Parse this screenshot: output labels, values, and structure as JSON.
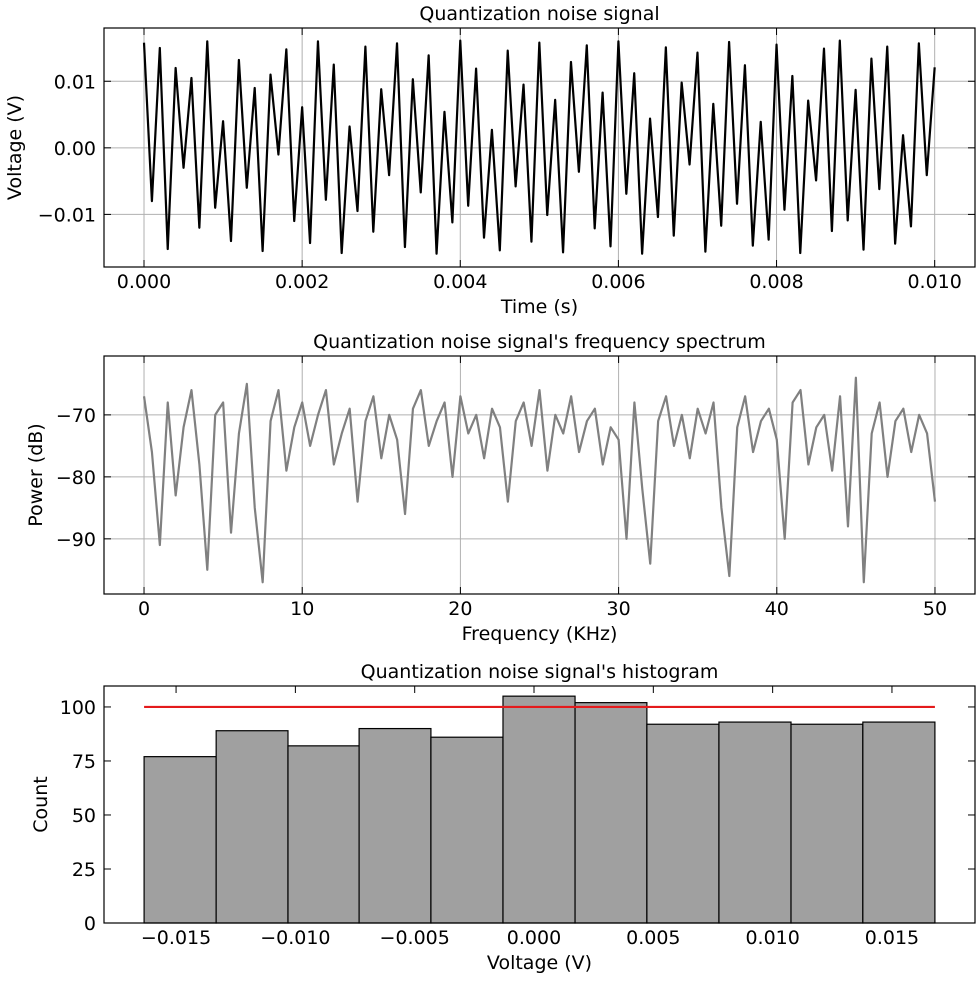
{
  "chart_data": [
    {
      "type": "line",
      "title": "Quantization noise signal",
      "xlabel": "Time (s)",
      "ylabel": "Voltage (V)",
      "color": "#000000",
      "grid": true,
      "xlim": [
        -0.000506,
        0.01051
      ],
      "ylim": [
        -0.0179,
        0.018
      ],
      "xticks": [
        {
          "value": 0,
          "label": "0.000"
        },
        {
          "value": 0.002,
          "label": "0.002"
        },
        {
          "value": 0.004,
          "label": "0.004"
        },
        {
          "value": 0.006,
          "label": "0.006"
        },
        {
          "value": 0.008,
          "label": "0.008"
        },
        {
          "value": 0.01,
          "label": "0.010"
        }
      ],
      "yticks": [
        {
          "value": -0.01,
          "label": "−0.01"
        },
        {
          "value": 0,
          "label": "0.00"
        },
        {
          "value": 0.01,
          "label": "0.01"
        }
      ],
      "x": [
        0,
        0.0001,
        0.0002,
        0.0003,
        0.0004,
        0.0005,
        0.0006,
        0.0007,
        0.0008,
        0.0009,
        0.001,
        0.0011,
        0.0012,
        0.0013,
        0.0014,
        0.0015,
        0.0016,
        0.0017,
        0.0018,
        0.0019,
        0.002,
        0.0021,
        0.0022,
        0.0023,
        0.0024,
        0.0025,
        0.0026,
        0.0027,
        0.0028,
        0.0029,
        0.003,
        0.0031,
        0.0032,
        0.0033,
        0.0034,
        0.0035,
        0.0036,
        0.0037,
        0.0038,
        0.0039,
        0.004,
        0.0041,
        0.0042,
        0.0043,
        0.0044,
        0.0045,
        0.0046,
        0.0047,
        0.0048,
        0.0049,
        0.005,
        0.0051,
        0.0052,
        0.0053,
        0.0054,
        0.0055,
        0.0056,
        0.0057,
        0.0058,
        0.0059,
        0.006,
        0.0061,
        0.0062,
        0.0063,
        0.0064,
        0.0065,
        0.0066,
        0.0067,
        0.0068,
        0.0069,
        0.007,
        0.0071,
        0.0072,
        0.0073,
        0.0074,
        0.0075,
        0.0076,
        0.0077,
        0.0078,
        0.0079,
        0.008,
        0.0081,
        0.0082,
        0.0083,
        0.0084,
        0.0085,
        0.0086,
        0.0087,
        0.0088,
        0.0089,
        0.009,
        0.0091,
        0.0092,
        0.0093,
        0.0094,
        0.0095,
        0.0096,
        0.0097,
        0.0098,
        0.0099,
        0.01
      ],
      "values": [
        0.0158,
        -0.008,
        0.015,
        -0.0152,
        0.012,
        -0.003,
        0.0105,
        -0.012,
        0.016,
        -0.009,
        0.004,
        -0.014,
        0.0132,
        -0.006,
        0.009,
        -0.0155,
        0.011,
        -0.001,
        0.0148,
        -0.011,
        0.0061,
        -0.0143,
        0.016,
        -0.0078,
        0.0125,
        -0.0158,
        0.0032,
        -0.0095,
        0.0152,
        -0.0126,
        0.0088,
        -0.0041,
        0.0157,
        -0.0149,
        0.0103,
        -0.0067,
        0.0139,
        -0.0159,
        0.0054,
        -0.0112,
        0.0161,
        -0.0087,
        0.0119,
        -0.0135,
        0.0027,
        -0.0154,
        0.0146,
        -0.0058,
        0.0095,
        -0.0141,
        0.0158,
        -0.0101,
        0.0072,
        -0.0157,
        0.0129,
        -0.0036,
        0.0154,
        -0.0121,
        0.0083,
        -0.0148,
        0.016,
        -0.0069,
        0.0112,
        -0.0159,
        0.0044,
        -0.0104,
        0.0151,
        -0.0132,
        0.0098,
        -0.0025,
        0.0143,
        -0.0156,
        0.0066,
        -0.0117,
        0.0159,
        -0.0084,
        0.0124,
        -0.0147,
        0.0039,
        -0.0138,
        0.0155,
        -0.0093,
        0.0108,
        -0.0158,
        0.0071,
        -0.0049,
        0.0149,
        -0.0125,
        0.0161,
        -0.0109,
        0.0087,
        -0.0153,
        0.0134,
        -0.0062,
        0.0152,
        -0.0144,
        0.0019,
        -0.0118,
        0.0157,
        -0.0041,
        0.0121
      ]
    },
    {
      "type": "line",
      "title": "Quantization noise signal's frequency spectrum",
      "xlabel": "Frequency (KHz)",
      "ylabel": "Power (dB)",
      "color": "#808080",
      "grid": true,
      "xlim": [
        -2.53,
        52.53
      ],
      "ylim": [
        -98.9,
        -60.5
      ],
      "xticks": [
        0,
        10,
        20,
        30,
        40,
        50
      ],
      "yticks": [
        {
          "value": -90,
          "label": "−90"
        },
        {
          "value": -80,
          "label": "−80"
        },
        {
          "value": -70,
          "label": "−70"
        }
      ],
      "x": [
        0,
        0.5,
        1,
        1.5,
        2,
        2.5,
        3,
        3.5,
        4,
        4.5,
        5,
        5.5,
        6,
        6.5,
        7,
        7.5,
        8,
        8.5,
        9,
        9.5,
        10,
        10.5,
        11,
        11.5,
        12,
        12.5,
        13,
        13.5,
        14,
        14.5,
        15,
        15.5,
        16,
        16.5,
        17,
        17.5,
        18,
        18.5,
        19,
        19.5,
        20,
        20.5,
        21,
        21.5,
        22,
        22.5,
        23,
        23.5,
        24,
        24.5,
        25,
        25.5,
        26,
        26.5,
        27,
        27.5,
        28,
        28.5,
        29,
        29.5,
        30,
        30.5,
        31,
        31.5,
        32,
        32.5,
        33,
        33.5,
        34,
        34.5,
        35,
        35.5,
        36,
        36.5,
        37,
        37.5,
        38,
        38.5,
        39,
        39.5,
        40,
        40.5,
        41,
        41.5,
        42,
        42.5,
        43,
        43.5,
        44,
        44.5,
        45,
        45.5,
        46,
        46.5,
        47,
        47.5,
        48,
        48.5,
        49,
        49.5,
        50
      ],
      "values": [
        -67,
        -76,
        -91,
        -68,
        -83,
        -72,
        -66,
        -78,
        -95,
        -70,
        -68,
        -89,
        -73,
        -65,
        -85,
        -97,
        -71,
        -66,
        -79,
        -72,
        -68,
        -75,
        -70,
        -66,
        -78,
        -73,
        -69,
        -84,
        -71,
        -67,
        -77,
        -70,
        -74,
        -86,
        -69,
        -66,
        -75,
        -71,
        -68,
        -80,
        -67,
        -73,
        -70,
        -77,
        -69,
        -72,
        -84,
        -71,
        -68,
        -75,
        -66,
        -79,
        -70,
        -73,
        -67,
        -76,
        -71,
        -69,
        -78,
        -72,
        -74,
        -90,
        -68,
        -82,
        -94,
        -71,
        -67,
        -75,
        -70,
        -77,
        -69,
        -73,
        -68,
        -85,
        -96,
        -72,
        -67,
        -76,
        -71,
        -69,
        -74,
        -90,
        -68,
        -66,
        -78,
        -72,
        -70,
        -79,
        -67,
        -88,
        -64,
        -97,
        -73,
        -68,
        -80,
        -71,
        -69,
        -76,
        -70,
        -73,
        -84
      ]
    },
    {
      "type": "histogram",
      "title": "Quantization noise signal's histogram",
      "xlabel": "Voltage (V)",
      "ylabel": "Count",
      "color": "#a0a0a0",
      "grid": false,
      "xlim": [
        -0.01802,
        0.01848
      ],
      "ylim": [
        0,
        109.7
      ],
      "xticks": [
        {
          "value": -0.015,
          "label": "−0.015"
        },
        {
          "value": -0.01,
          "label": "−0.010"
        },
        {
          "value": -0.005,
          "label": "−0.005"
        },
        {
          "value": 0,
          "label": "0.000"
        },
        {
          "value": 0.005,
          "label": "0.005"
        },
        {
          "value": 0.01,
          "label": "0.010"
        },
        {
          "value": 0.015,
          "label": "0.015"
        }
      ],
      "yticks": [
        0,
        25,
        50,
        75,
        100
      ],
      "bins": [
        -0.01634,
        -0.01332,
        -0.01031,
        -0.00733,
        -0.00432,
        -0.0013,
        0.00172,
        0.00473,
        0.00775,
        0.01077,
        0.01378,
        0.0168
      ],
      "values": [
        77,
        89,
        82,
        90,
        86,
        105,
        102,
        92,
        93,
        92,
        93
      ],
      "line": {
        "color": "#e41a1c",
        "x": [
          -0.01634,
          0.0168
        ],
        "values": [
          100,
          100
        ]
      }
    }
  ]
}
